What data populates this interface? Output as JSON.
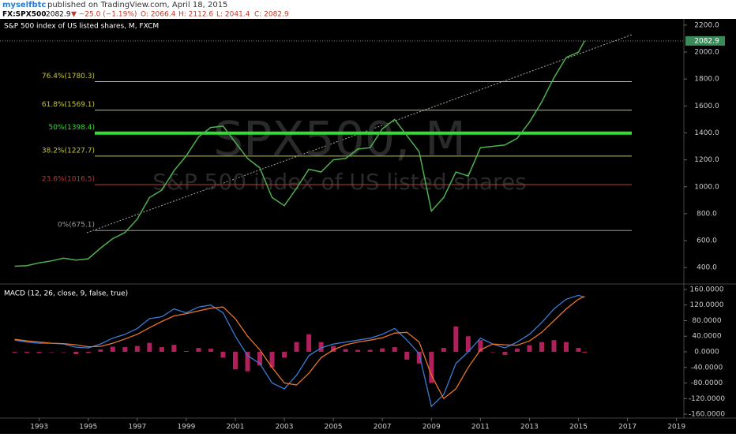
{
  "header": {
    "author": "myselfbtc",
    "byline": "published on TradingView.com, April 18, 2015"
  },
  "quote": {
    "symbol": "FX:SPX500",
    "price": "2082.9",
    "change": "▼ −25.0 (−1.19%)",
    "open": "O: 2066.4",
    "high": "H: 2112.6",
    "low": "L: 2041.4",
    "close": "C: 2082.9"
  },
  "chart_data": [
    {
      "type": "line",
      "title": "S&P 500 index of US listed shares, M, FXCM",
      "watermark": [
        "SPX500, M",
        "S&P 500 index of US listed shares"
      ],
      "x": [
        1992,
        1992.5,
        1993,
        1993.5,
        1994,
        1994.5,
        1995,
        1995.5,
        1996,
        1996.5,
        1997,
        1997.5,
        1998,
        1998.5,
        1999,
        1999.5,
        2000,
        2000.5,
        2001,
        2001.5,
        2002,
        2002.5,
        2003,
        2003.5,
        2004,
        2004.5,
        2005,
        2005.5,
        2006,
        2006.5,
        2007,
        2007.5,
        2008,
        2008.5,
        2009,
        2009.5,
        2010,
        2010.5,
        2011,
        2011.5,
        2012,
        2012.5,
        2013,
        2013.5,
        2014,
        2014.5,
        2015,
        2015.25
      ],
      "series": [
        {
          "color": "#4fb04f",
          "values": [
            410,
            415,
            435,
            450,
            470,
            455,
            465,
            545,
            615,
            660,
            760,
            920,
            975,
            1120,
            1230,
            1370,
            1440,
            1450,
            1330,
            1210,
            1140,
            920,
            860,
            990,
            1130,
            1110,
            1200,
            1210,
            1280,
            1290,
            1430,
            1500,
            1380,
            1260,
            820,
            920,
            1110,
            1080,
            1290,
            1300,
            1310,
            1360,
            1480,
            1630,
            1810,
            1960,
            2000,
            2083
          ]
        }
      ],
      "last_price": 2082.9,
      "fib_levels": [
        {
          "label": "76.4%(1780.3)",
          "value": 1780.3,
          "color": "#c8c83a"
        },
        {
          "label": "61.8%(1569.1)",
          "value": 1569.1,
          "color": "#c8c83a"
        },
        {
          "label": "50%(1398.4)",
          "value": 1398.4,
          "color": "#33dd33"
        },
        {
          "label": "38.2%(1227.7)",
          "value": 1227.7,
          "color": "#c8c83a"
        },
        {
          "label": "23.6%(1016.5)",
          "value": 1016.5,
          "color": "#b83a3a"
        },
        {
          "label": "0%(675.1)",
          "value": 675.1,
          "color": "#999999"
        }
      ],
      "xlim": [
        1991.4,
        2019.3
      ],
      "ylim": [
        290,
        2246
      ],
      "yticks": [
        {
          "value": 400,
          "label": "400.0"
        },
        {
          "value": 600,
          "label": "600.0"
        },
        {
          "value": 800,
          "label": "800.0"
        },
        {
          "value": 1000,
          "label": "1000.0"
        },
        {
          "value": 1200,
          "label": "1200.0"
        },
        {
          "value": 1400,
          "label": "1400.0"
        },
        {
          "value": 1600,
          "label": "1600.0"
        },
        {
          "value": 1800,
          "label": "1800.0"
        },
        {
          "value": 2000,
          "label": "2000.0"
        },
        {
          "value": 2200,
          "label": "2200.0"
        }
      ]
    },
    {
      "type": "macd",
      "title": "MACD (12, 26, close, 9, false, true)",
      "x": [
        1992,
        1992.5,
        1993,
        1993.5,
        1994,
        1994.5,
        1995,
        1995.5,
        1996,
        1996.5,
        1997,
        1997.5,
        1998,
        1998.5,
        1999,
        1999.5,
        2000,
        2000.5,
        2001,
        2001.5,
        2002,
        2002.5,
        2003,
        2003.5,
        2004,
        2004.5,
        2005,
        2005.5,
        2006,
        2006.5,
        2007,
        2007.5,
        2008,
        2008.5,
        2009,
        2009.5,
        2010,
        2010.5,
        2011,
        2011.5,
        2012,
        2012.5,
        2013,
        2013.5,
        2014,
        2014.5,
        2015,
        2015.25
      ],
      "series": [
        {
          "kind": "bar",
          "color": "#b0205a",
          "values": [
            -2,
            -3,
            -3,
            0,
            -1,
            -6,
            -3,
            6,
            13,
            12,
            15,
            23,
            12,
            18,
            2,
            10,
            8,
            -15,
            -45,
            -50,
            -35,
            -40,
            -15,
            25,
            45,
            25,
            15,
            7,
            5,
            5,
            9,
            12,
            -20,
            -30,
            -80,
            10,
            65,
            40,
            30,
            0,
            -8,
            8,
            17,
            25,
            30,
            25,
            10,
            -2
          ]
        },
        {
          "kind": "line",
          "color": "#3a7bd5",
          "values": [
            30,
            25,
            22,
            22,
            20,
            12,
            10,
            20,
            35,
            45,
            60,
            85,
            90,
            110,
            100,
            115,
            120,
            100,
            40,
            -10,
            -30,
            -80,
            -95,
            -60,
            -10,
            10,
            20,
            25,
            30,
            35,
            45,
            60,
            30,
            -5,
            -140,
            -110,
            -30,
            0,
            35,
            20,
            10,
            25,
            45,
            75,
            110,
            135,
            145,
            140
          ]
        },
        {
          "kind": "line",
          "color": "#e8742a",
          "values": [
            32,
            28,
            25,
            22,
            21,
            18,
            13,
            14,
            22,
            33,
            45,
            62,
            78,
            92,
            98,
            105,
            112,
            115,
            85,
            40,
            5,
            -40,
            -80,
            -85,
            -55,
            -15,
            5,
            18,
            25,
            30,
            36,
            48,
            50,
            25,
            -60,
            -120,
            -95,
            -40,
            5,
            20,
            18,
            17,
            28,
            50,
            80,
            110,
            135,
            142
          ]
        }
      ],
      "xlim": [
        1991.4,
        2019.3
      ],
      "ylim": [
        -170,
        170
      ],
      "xticks": [
        1993,
        1995,
        1997,
        1999,
        2001,
        2003,
        2005,
        2007,
        2009,
        2011,
        2013,
        2015,
        2017,
        2019
      ],
      "yticks": [
        {
          "value": 160,
          "label": "160.0000"
        },
        {
          "value": 120,
          "label": "120.0000"
        },
        {
          "value": 80,
          "label": "80.0000"
        },
        {
          "value": 40,
          "label": "40.0000"
        },
        {
          "value": 0,
          "label": "0.0000"
        },
        {
          "value": -40,
          "label": "-40.0000"
        },
        {
          "value": -80,
          "label": "-80.0000"
        },
        {
          "value": -120,
          "label": "-120.0000"
        },
        {
          "value": -160,
          "label": "-160.0000"
        }
      ]
    }
  ]
}
